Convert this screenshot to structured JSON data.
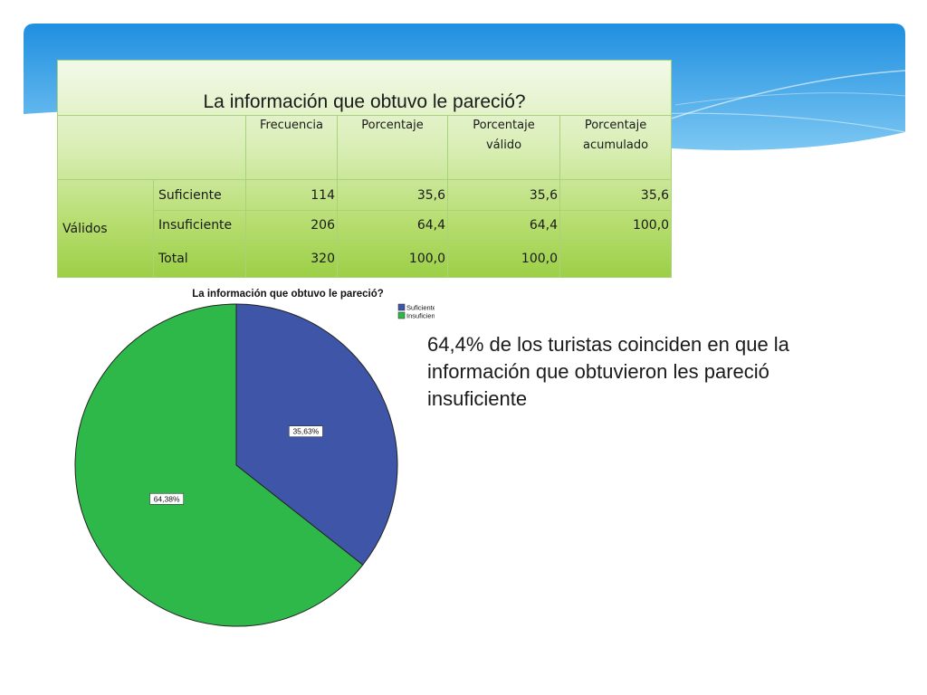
{
  "table": {
    "title": "La información que obtuvo le pareció?",
    "headers": [
      "Frecuencia",
      "Porcentaje",
      "Porcentaje válido",
      "Porcentaje acumulado"
    ],
    "group_label": "Válidos",
    "rows": [
      {
        "label": "Suficiente",
        "frecuencia": "114",
        "porcentaje": "35,6",
        "valido": "35,6",
        "acumulado": "35,6"
      },
      {
        "label": "Insuficiente",
        "frecuencia": "206",
        "porcentaje": "64,4",
        "valido": "64,4",
        "acumulado": "100,0"
      },
      {
        "label": "Total",
        "frecuencia": "320",
        "porcentaje": "100,0",
        "valido": "100,0",
        "acumulado": ""
      }
    ]
  },
  "chart_data": {
    "type": "pie",
    "title": "La información que obtuvo le pareció?",
    "categories": [
      "Suficiente",
      "Insuficiente"
    ],
    "values": [
      35.63,
      64.38
    ],
    "data_labels": [
      "35,63%",
      "64,38%"
    ],
    "colors": [
      "#3f56a8",
      "#2fb84a"
    ],
    "legend_position": "top-right"
  },
  "caption": "64,4% de los turistas coinciden en que la información que obtuvieron les pareció insuficiente"
}
